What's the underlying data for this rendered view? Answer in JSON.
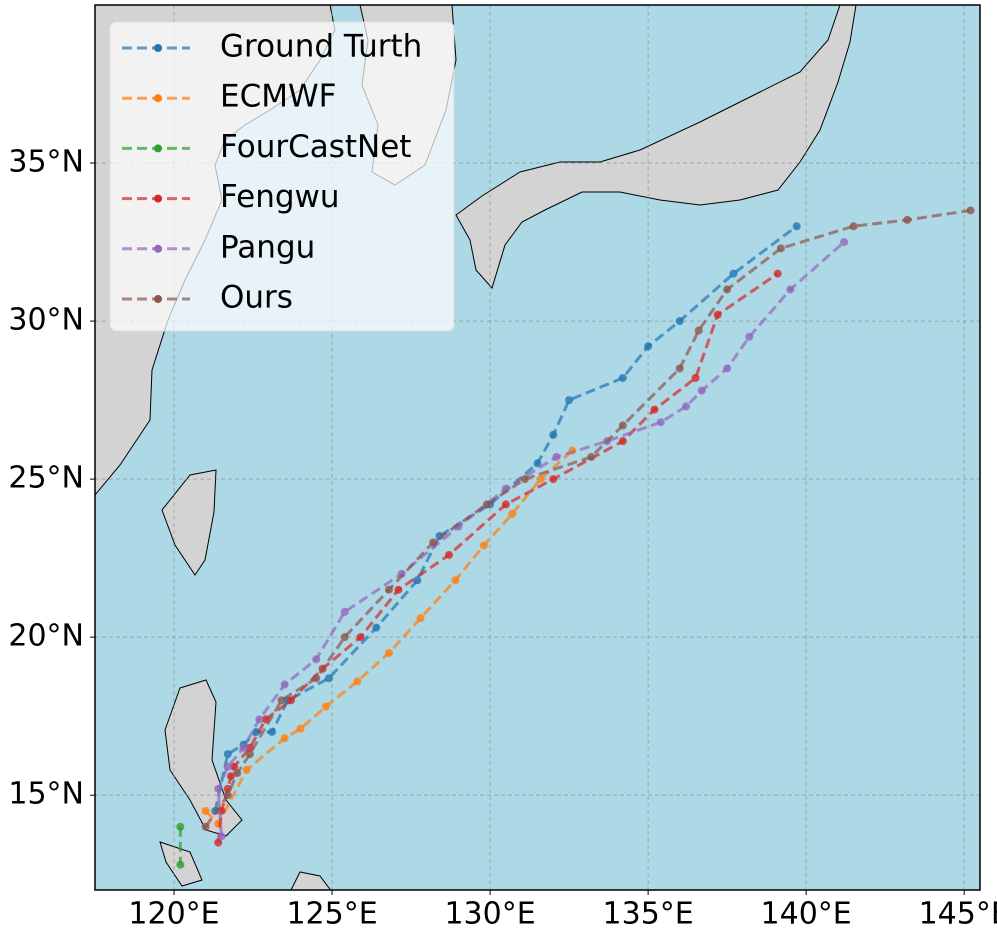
{
  "chart_data": {
    "type": "line",
    "xlim": [
      117.5,
      145.5
    ],
    "ylim": [
      12,
      40
    ],
    "xticks": [
      {
        "value": 120,
        "label": "120°E"
      },
      {
        "value": 125,
        "label": "125°E"
      },
      {
        "value": 130,
        "label": "130°E"
      },
      {
        "value": 135,
        "label": "135°E"
      },
      {
        "value": 140,
        "label": "140°E"
      },
      {
        "value": 145,
        "label": "145°E"
      }
    ],
    "yticks": [
      {
        "value": 15,
        "label": "15°N"
      },
      {
        "value": 20,
        "label": "20°N"
      },
      {
        "value": 25,
        "label": "25°N"
      },
      {
        "value": 30,
        "label": "30°N"
      },
      {
        "value": 35,
        "label": "35°N"
      }
    ],
    "grid": true,
    "legend": "upper left",
    "series": [
      {
        "name": "Ground Turth",
        "color": "#1f77b4",
        "x": [
          121.3,
          121.7,
          122.2,
          122.6,
          123.1,
          123.6,
          124.9,
          126.4,
          127.7,
          128.4,
          130.0,
          131.5,
          132.0,
          132.5,
          134.2,
          135.0,
          136.0,
          137.7,
          139.7
        ],
        "values": [
          14.5,
          16.3,
          16.6,
          17.0,
          17.0,
          18.0,
          18.7,
          20.3,
          21.8,
          23.2,
          24.2,
          25.5,
          26.4,
          27.5,
          28.2,
          29.2,
          30.0,
          31.5,
          33.0
        ]
      },
      {
        "name": "ECMWF",
        "color": "#ff7f0e",
        "x": [
          121.0,
          121.4,
          122.3,
          123.5,
          124.0,
          124.8,
          125.8,
          126.8,
          127.8,
          128.9,
          129.8,
          130.7,
          131.6,
          132.6
        ],
        "values": [
          14.5,
          14.1,
          15.8,
          16.8,
          17.1,
          17.8,
          18.6,
          19.5,
          20.6,
          21.8,
          22.9,
          23.9,
          25.0,
          25.9
        ]
      },
      {
        "name": "FourCastNet",
        "color": "#2ca02c",
        "x": [
          120.2,
          120.2
        ],
        "values": [
          14.0,
          12.8
        ]
      },
      {
        "name": "Fengwu",
        "color": "#d62728",
        "x": [
          121.4,
          121.5,
          121.7,
          121.8,
          121.9,
          122.4,
          122.9,
          123.7,
          124.7,
          125.9,
          127.1,
          128.7,
          130.5,
          132.0,
          134.2,
          135.2,
          136.5,
          137.2,
          139.1
        ],
        "values": [
          13.5,
          14.5,
          15.2,
          15.6,
          15.9,
          16.5,
          17.4,
          18.0,
          19.0,
          20.0,
          21.5,
          22.6,
          24.2,
          25.0,
          26.2,
          27.2,
          28.2,
          30.2,
          31.5
        ]
      },
      {
        "name": "Pangu",
        "color": "#9467bd",
        "x": [
          121.5,
          121.4,
          121.7,
          122.2,
          122.7,
          123.5,
          124.5,
          125.4,
          127.2,
          129.0,
          130.5,
          132.1,
          133.7,
          135.4,
          136.2,
          136.7,
          137.5,
          138.2,
          139.5,
          141.2
        ],
        "values": [
          13.7,
          15.2,
          15.9,
          16.5,
          17.4,
          18.5,
          19.3,
          20.8,
          22.0,
          23.5,
          24.7,
          25.7,
          26.2,
          26.8,
          27.3,
          27.8,
          28.5,
          29.5,
          31.0,
          32.5
        ]
      },
      {
        "name": "Ours",
        "color": "#8c564b",
        "x": [
          121.0,
          121.7,
          122.0,
          122.4,
          123.4,
          124.5,
          125.4,
          126.8,
          128.2,
          129.9,
          131.1,
          133.2,
          134.2,
          136.0,
          136.6,
          137.5,
          139.2,
          141.5,
          143.2,
          145.2
        ],
        "values": [
          14.0,
          15.0,
          15.7,
          16.3,
          18.0,
          18.7,
          20.0,
          21.5,
          23.0,
          24.2,
          25.0,
          25.7,
          26.7,
          28.5,
          29.7,
          31.0,
          32.3,
          33.0,
          33.2,
          33.5
        ]
      }
    ]
  }
}
